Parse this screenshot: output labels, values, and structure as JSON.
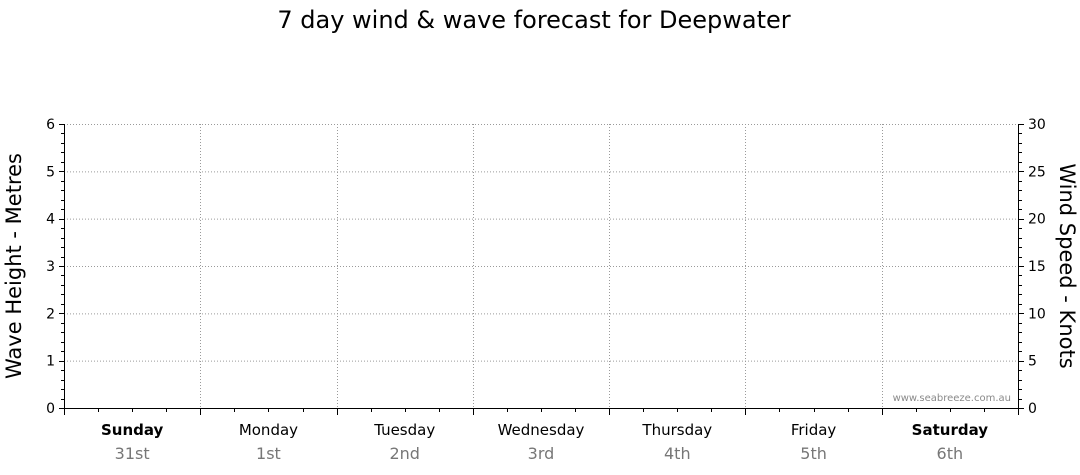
{
  "chart_data": {
    "type": "line",
    "title": "7 day wind & wave forecast for Deepwater",
    "ylabel_left": "Wave Height - Metres",
    "ylabel_right": "Wind Speed - Knots",
    "ylim_left": [
      0,
      6
    ],
    "ylim_right": [
      0,
      30
    ],
    "yticks_left": [
      "0",
      "1",
      "2",
      "3",
      "4",
      "5",
      "6"
    ],
    "yticks_right": [
      "0",
      "5",
      "10",
      "15",
      "20",
      "25",
      "30"
    ],
    "grid": true,
    "days": [
      {
        "name": "Sunday",
        "date": "31st",
        "bold": true
      },
      {
        "name": "Monday",
        "date": "1st",
        "bold": false
      },
      {
        "name": "Tuesday",
        "date": "2nd",
        "bold": false
      },
      {
        "name": "Wednesday",
        "date": "3rd",
        "bold": false
      },
      {
        "name": "Thursday",
        "date": "4th",
        "bold": false
      },
      {
        "name": "Friday",
        "date": "5th",
        "bold": false
      },
      {
        "name": "Saturday",
        "date": "6th",
        "bold": true
      }
    ],
    "series": []
  },
  "watermark": "www.seabreeze.com.au"
}
